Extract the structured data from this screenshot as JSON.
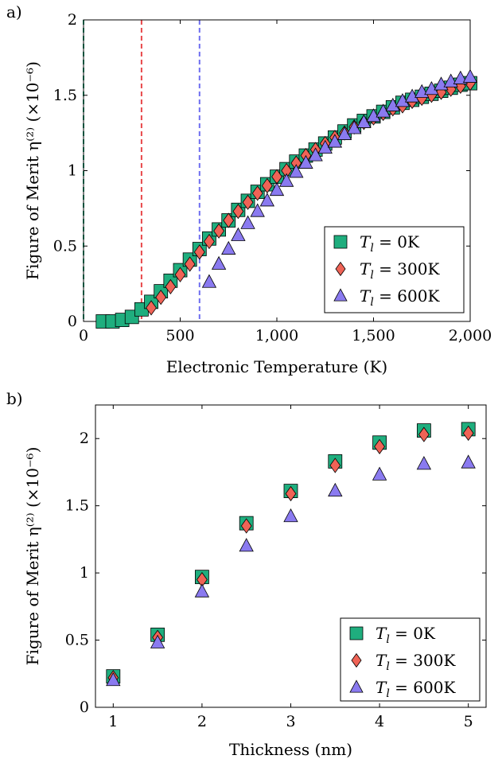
{
  "chart_data": [
    {
      "type": "scatter",
      "panel_label": "a)",
      "xlabel": "Electronic Temperature (K)",
      "ylabel": "Figure of Merit η⁽²⁾  (×10⁻⁶)",
      "xlim": [
        0,
        2000
      ],
      "ylim": [
        0,
        2
      ],
      "xticks": [
        0,
        500,
        1000,
        1500,
        2000
      ],
      "xtick_labels": [
        "0",
        "500",
        "1,000",
        "1,500",
        "2,000"
      ],
      "yticks": [
        0,
        0.5,
        1,
        1.5,
        2
      ],
      "ytick_labels": [
        "0",
        "0.5",
        "1",
        "1.5",
        "2"
      ],
      "grid": false,
      "legend_position": "bottom-right",
      "vlines": [
        {
          "x": 0,
          "color": "#1aa57a"
        },
        {
          "x": 300,
          "color": "#e8484a"
        },
        {
          "x": 600,
          "color": "#6e6ef0"
        }
      ],
      "series": [
        {
          "name": "T_l = 0K",
          "marker": "square",
          "color": "#1fae7e",
          "x": [
            100,
            150,
            200,
            250,
            300,
            350,
            400,
            450,
            500,
            550,
            600,
            650,
            700,
            750,
            800,
            850,
            900,
            950,
            1000,
            1050,
            1100,
            1150,
            1200,
            1250,
            1300,
            1350,
            1400,
            1450,
            1500,
            1550,
            1600,
            1650,
            1700,
            1750,
            1800,
            1850,
            1900,
            1950,
            2000
          ],
          "y": [
            0.0,
            0.0,
            0.01,
            0.03,
            0.08,
            0.13,
            0.2,
            0.27,
            0.34,
            0.41,
            0.48,
            0.55,
            0.61,
            0.67,
            0.74,
            0.8,
            0.86,
            0.91,
            0.96,
            1.01,
            1.06,
            1.1,
            1.14,
            1.18,
            1.22,
            1.26,
            1.3,
            1.33,
            1.36,
            1.39,
            1.42,
            1.45,
            1.47,
            1.49,
            1.51,
            1.53,
            1.55,
            1.57,
            1.58
          ]
        },
        {
          "name": "T_l = 300K",
          "marker": "diamond",
          "color": "#ef6356",
          "x": [
            350,
            400,
            450,
            500,
            550,
            600,
            650,
            700,
            750,
            800,
            850,
            900,
            950,
            1000,
            1050,
            1100,
            1150,
            1200,
            1250,
            1300,
            1350,
            1400,
            1450,
            1500,
            1550,
            1600,
            1650,
            1700,
            1750,
            1800,
            1850,
            1900,
            1950,
            2000
          ],
          "y": [
            0.09,
            0.16,
            0.23,
            0.31,
            0.38,
            0.46,
            0.53,
            0.6,
            0.67,
            0.73,
            0.79,
            0.85,
            0.9,
            0.96,
            1.0,
            1.05,
            1.1,
            1.14,
            1.18,
            1.22,
            1.25,
            1.29,
            1.32,
            1.35,
            1.38,
            1.41,
            1.43,
            1.46,
            1.48,
            1.5,
            1.52,
            1.54,
            1.56,
            1.58
          ]
        },
        {
          "name": "T_l = 600K",
          "marker": "triangle",
          "color": "#8a7af0",
          "x": [
            650,
            700,
            750,
            800,
            850,
            900,
            950,
            1000,
            1050,
            1100,
            1150,
            1200,
            1250,
            1300,
            1350,
            1400,
            1450,
            1500,
            1550,
            1600,
            1650,
            1700,
            1750,
            1800,
            1850,
            1900,
            1950,
            2000
          ],
          "y": [
            0.26,
            0.38,
            0.48,
            0.57,
            0.65,
            0.73,
            0.8,
            0.87,
            0.93,
            0.99,
            1.05,
            1.1,
            1.15,
            1.19,
            1.24,
            1.28,
            1.32,
            1.36,
            1.39,
            1.43,
            1.46,
            1.49,
            1.52,
            1.54,
            1.57,
            1.59,
            1.61,
            1.62
          ]
        }
      ]
    },
    {
      "type": "scatter",
      "panel_label": "b)",
      "xlabel": "Thickness (nm)",
      "ylabel": "Figure of Merit η⁽²⁾  (×10⁻⁶)",
      "xlim": [
        0.8,
        5.2
      ],
      "ylim": [
        0,
        2.25
      ],
      "xticks": [
        1,
        2,
        3,
        4,
        5
      ],
      "xtick_labels": [
        "1",
        "2",
        "3",
        "4",
        "5"
      ],
      "yticks": [
        0,
        0.5,
        1,
        1.5,
        2
      ],
      "ytick_labels": [
        "0",
        "0.5",
        "1",
        "1.5",
        "2"
      ],
      "grid": false,
      "legend_position": "bottom-right",
      "series": [
        {
          "name": "T_l = 0K",
          "marker": "square",
          "color": "#1fae7e",
          "x": [
            1,
            1.5,
            2,
            2.5,
            3,
            3.5,
            4,
            4.5,
            5
          ],
          "y": [
            0.23,
            0.54,
            0.97,
            1.37,
            1.61,
            1.83,
            1.97,
            2.06,
            2.07
          ]
        },
        {
          "name": "T_l = 300K",
          "marker": "diamond",
          "color": "#ef6356",
          "x": [
            1,
            1.5,
            2,
            2.5,
            3,
            3.5,
            4,
            4.5,
            5
          ],
          "y": [
            0.22,
            0.52,
            0.95,
            1.35,
            1.59,
            1.8,
            1.94,
            2.03,
            2.04
          ]
        },
        {
          "name": "T_l = 600K",
          "marker": "triangle",
          "color": "#8a7af0",
          "x": [
            1,
            1.5,
            2,
            2.5,
            3,
            3.5,
            4,
            4.5,
            5
          ],
          "y": [
            0.2,
            0.48,
            0.86,
            1.2,
            1.42,
            1.61,
            1.73,
            1.81,
            1.82
          ]
        }
      ]
    }
  ]
}
